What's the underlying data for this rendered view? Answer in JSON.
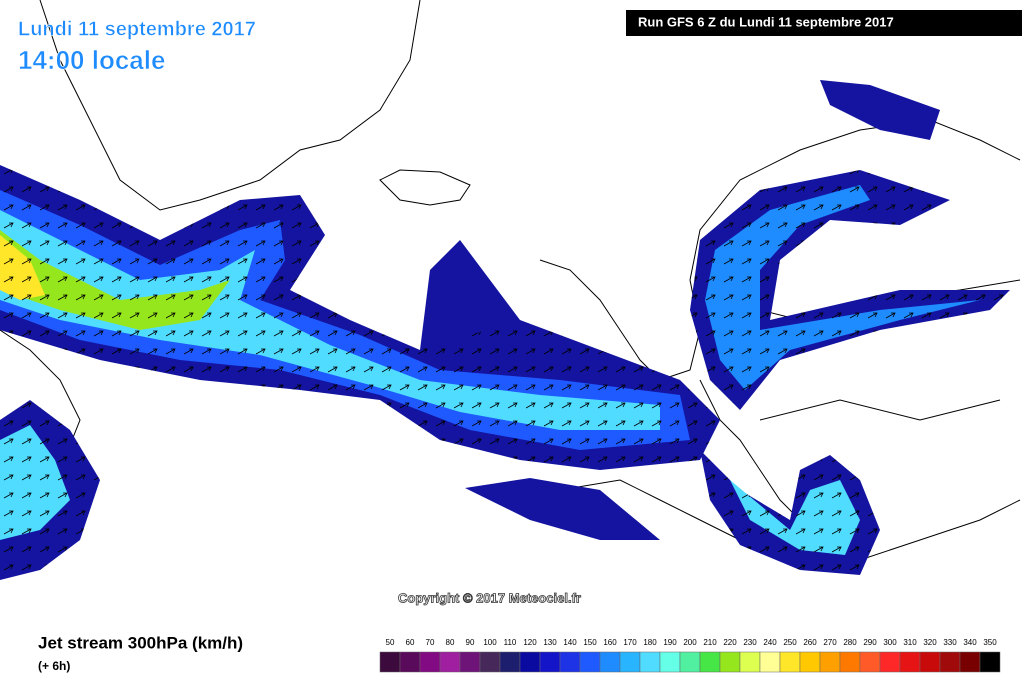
{
  "header": {
    "date": "Lundi 11 septembre 2017",
    "time": "14:00 locale"
  },
  "run": "Run GFS 6 Z du Lundi 11 septembre 2017",
  "copyright": "Copyright © 2017 Meteociel.fr",
  "legend": {
    "title": "Jet stream 300hPa (km/h)",
    "step": "(+ 6h)",
    "values": [
      50,
      60,
      70,
      80,
      90,
      100,
      110,
      120,
      130,
      140,
      150,
      160,
      170,
      180,
      190,
      200,
      210,
      220,
      230,
      240,
      250,
      260,
      270,
      280,
      290,
      300,
      310,
      320,
      330,
      340,
      350
    ],
    "colors": [
      "#3c0a3c",
      "#5a0a5a",
      "#820a82",
      "#a01ea0",
      "#6e1478",
      "#46285a",
      "#1e1e6e",
      "#0a0aa0",
      "#1414c8",
      "#1e32e6",
      "#1e5aff",
      "#1e8cff",
      "#28b4ff",
      "#50dcff",
      "#64ffe6",
      "#50f0a0",
      "#46e646",
      "#96e61e",
      "#dcff50",
      "#ffff96",
      "#ffe628",
      "#ffc800",
      "#ffa000",
      "#ff7800",
      "#ff5a28",
      "#ff2828",
      "#e61414",
      "#c80a0a",
      "#a00a0a",
      "#780000",
      "#000000"
    ]
  }
}
